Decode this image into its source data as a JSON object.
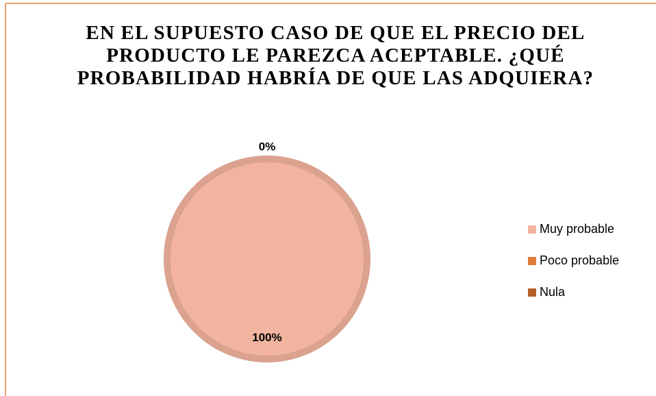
{
  "chart_data": {
    "type": "pie",
    "title": "EN EL SUPUESTO CASO DE QUE EL PRECIO DEL PRODUCTO LE PAREZCA ACEPTABLE. ¿QUÉ PROBABILIDAD HABRÍA DE QUE LAS ADQUIERA?",
    "categories": [
      "Muy probable",
      "Poco probable",
      "Nula"
    ],
    "values": [
      100,
      0,
      0
    ],
    "value_labels": [
      "100%",
      "0%",
      null
    ],
    "colors": [
      "#f2b49f",
      "#e07b39",
      "#b5622a"
    ],
    "legend": "right"
  }
}
